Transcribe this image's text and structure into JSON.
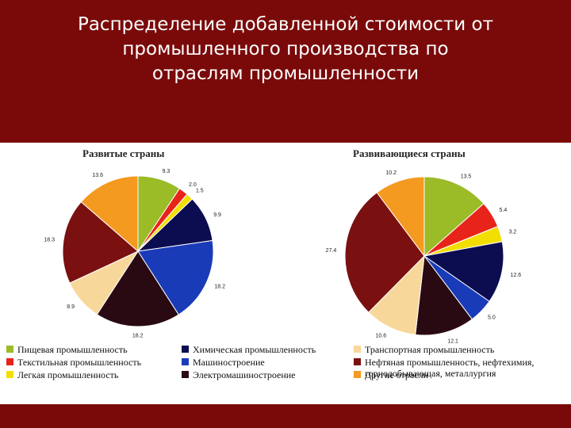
{
  "header": {
    "title_lines": [
      "Распределение добавленной стоимости от",
      "промышленного производства по",
      "отраслям промышленности"
    ]
  },
  "colors": {
    "food": "#9bbb27",
    "textile": "#e8241a",
    "light": "#f2de00",
    "chemical": "#0c0c50",
    "machinery": "#1a3bb8",
    "electrical": "#2a0a12",
    "transport": "#f8d79a",
    "petroleum": "#7a1010",
    "other": "#f49a20"
  },
  "legend": [
    {
      "key": "food",
      "label": "Пищевая промышленность",
      "color": "#9bbb27"
    },
    {
      "key": "textile",
      "label": "Текстильная промышленность",
      "color": "#e8241a"
    },
    {
      "key": "light",
      "label": "Легкая промышленность",
      "color": "#f2de00"
    },
    {
      "key": "chemical",
      "label": "Химическая промышленность",
      "color": "#0c0c50"
    },
    {
      "key": "machinery",
      "label": "Машиностроение",
      "color": "#1a3bb8"
    },
    {
      "key": "electrical",
      "label": "Электромашиностроение",
      "color": "#2a0a12"
    },
    {
      "key": "transport",
      "label": "Транспортная промышленность",
      "color": "#f8d79a"
    },
    {
      "key": "petroleum",
      "label": "Нефтяная промышленность, нефтехимия,",
      "label2": "горнодобывающая, металлургия",
      "color": "#7a1010"
    },
    {
      "key": "other",
      "label": "Другие отрасли",
      "color": "#f49a20"
    }
  ],
  "chart_data": [
    {
      "type": "pie",
      "title": "Развитые страны",
      "categories": [
        "food",
        "textile",
        "light",
        "chemical",
        "machinery",
        "electrical",
        "transport",
        "petroleum",
        "other"
      ],
      "values": [
        9.3,
        2.0,
        1.5,
        9.9,
        18.2,
        18.2,
        8.9,
        18.3,
        13.6
      ],
      "labels": [
        "9.3",
        "2.0",
        "1.5",
        "9.9",
        "18.2",
        "18.2",
        "8.9",
        "18.3",
        "13.6"
      ]
    },
    {
      "type": "pie",
      "title": "Развивающиеся страны",
      "categories": [
        "food",
        "textile",
        "light",
        "chemical",
        "machinery",
        "electrical",
        "transport",
        "petroleum",
        "other"
      ],
      "values": [
        13.5,
        5.4,
        3.2,
        12.6,
        5.0,
        12.1,
        10.6,
        27.4,
        10.2
      ],
      "labels": [
        "13.5",
        "5.4",
        "3.2",
        "12.6",
        "5.0",
        "12.1",
        "10.6",
        "27.4",
        "10.2"
      ]
    }
  ]
}
